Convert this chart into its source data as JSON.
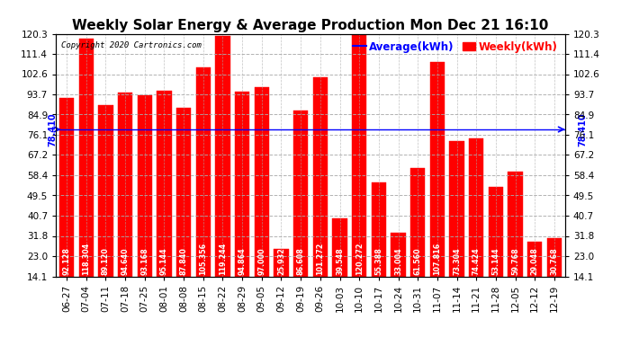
{
  "title": "Weekly Solar Energy & Average Production Mon Dec 21 16:10",
  "copyright": "Copyright 2020 Cartronics.com",
  "average_label": "Average(kWh)",
  "weekly_label": "Weekly(kWh)",
  "average_value": 78.41,
  "categories": [
    "06-27",
    "07-04",
    "07-11",
    "07-18",
    "07-25",
    "08-01",
    "08-08",
    "08-15",
    "08-22",
    "08-29",
    "09-05",
    "09-12",
    "09-19",
    "09-26",
    "10-03",
    "10-10",
    "10-17",
    "10-24",
    "10-31",
    "11-07",
    "11-14",
    "11-21",
    "11-28",
    "12-05",
    "12-12",
    "12-19"
  ],
  "values": [
    92.128,
    118.304,
    89.12,
    94.64,
    93.168,
    95.144,
    87.84,
    105.356,
    119.244,
    94.864,
    97.0,
    25.932,
    86.608,
    101.272,
    39.548,
    120.272,
    55.388,
    33.004,
    61.56,
    107.816,
    73.304,
    74.424,
    53.144,
    59.768,
    29.048,
    30.768
  ],
  "bar_color": "#FF0000",
  "average_line_color": "#0000FF",
  "text_color_on_bar": "#FFFFFF",
  "background_color": "#FFFFFF",
  "grid_color": "#AAAAAA",
  "title_color": "#000000",
  "copyright_color": "#000000",
  "avg_label_color": "#0000FF",
  "weekly_label_color": "#FF0000",
  "ymin": 14.1,
  "ymax": 120.3,
  "yticks": [
    14.1,
    23.0,
    31.8,
    40.7,
    49.5,
    58.4,
    67.2,
    76.1,
    84.9,
    93.7,
    102.6,
    111.4,
    120.3
  ],
  "title_fontsize": 11,
  "bar_label_fontsize": 5.8,
  "axis_fontsize": 7.5,
  "legend_fontsize": 8.5,
  "avg_annotation_fontsize": 7,
  "avg_left_label": "78.410",
  "avg_right_label": "78.410"
}
